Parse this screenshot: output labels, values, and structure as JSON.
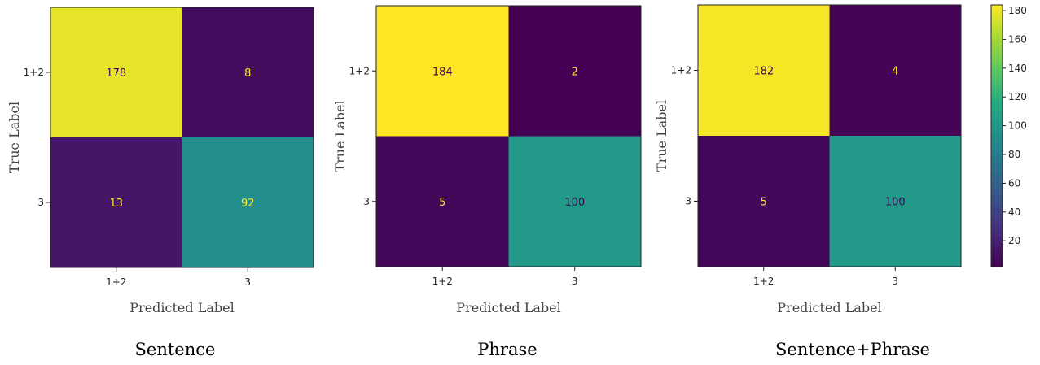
{
  "chart_data": [
    {
      "type": "heatmap",
      "caption": "Sentence",
      "xlabel": "Predicted Label",
      "ylabel": "True Label",
      "x_categories": [
        "1+2",
        "3"
      ],
      "y_categories": [
        "1+2",
        "3"
      ],
      "values": [
        [
          178,
          8
        ],
        [
          13,
          92
        ]
      ]
    },
    {
      "type": "heatmap",
      "caption": "Phrase",
      "xlabel": "Predicted Label",
      "ylabel": "True Label",
      "x_categories": [
        "1+2",
        "3"
      ],
      "y_categories": [
        "1+2",
        "3"
      ],
      "values": [
        [
          184,
          2
        ],
        [
          5,
          100
        ]
      ]
    },
    {
      "type": "heatmap",
      "caption": "Sentence+Phrase",
      "xlabel": "Predicted Label",
      "ylabel": "True Label",
      "x_categories": [
        "1+2",
        "3"
      ],
      "y_categories": [
        "1+2",
        "3"
      ],
      "values": [
        [
          182,
          4
        ],
        [
          5,
          100
        ]
      ]
    }
  ],
  "colorbar": {
    "colormap": "viridis",
    "range": [
      2,
      184
    ],
    "ticks": [
      20,
      40,
      60,
      80,
      100,
      120,
      140,
      160,
      180
    ]
  },
  "colors": {
    "high": "#fde725",
    "mid": "#21918c",
    "low": "#440154",
    "text_on_dark": "#fde725",
    "text_on_light": "#440154"
  }
}
